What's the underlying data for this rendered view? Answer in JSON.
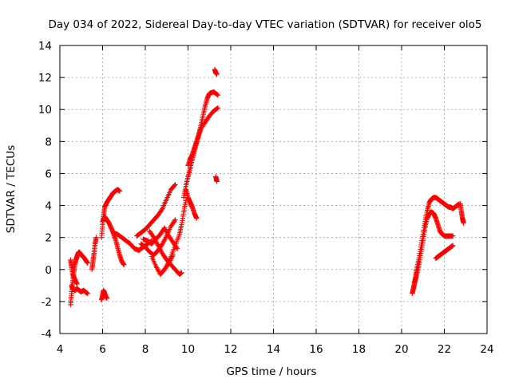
{
  "chart_data": {
    "type": "scatter",
    "title": "Day 034 of 2022, Sidereal Day-to-day VTEC variation (SDTVAR) for receiver olo5",
    "xlabel": "GPS time / hours",
    "ylabel": "SDTVAR / TECUs",
    "xlim": [
      4,
      24
    ],
    "ylim": [
      -4,
      14
    ],
    "xticks": [
      4,
      6,
      8,
      10,
      12,
      14,
      16,
      18,
      20,
      22,
      24
    ],
    "yticks": [
      -4,
      -2,
      0,
      2,
      4,
      6,
      8,
      10,
      12,
      14
    ],
    "grid": true,
    "marker": "+",
    "color": "#ff0000",
    "series": [
      {
        "name": "seg-a",
        "x": [
          4.5,
          4.55,
          4.6,
          4.65,
          4.7,
          4.75,
          4.8,
          4.85,
          4.9,
          4.95,
          5.0,
          5.1,
          5.2,
          5.3
        ],
        "y": [
          -2.2,
          -1.5,
          -0.8,
          -0.2,
          0.3,
          0.6,
          0.8,
          1.0,
          1.1,
          1.0,
          0.9,
          0.8,
          0.6,
          0.4
        ]
      },
      {
        "name": "seg-b",
        "x": [
          4.55,
          4.6,
          4.7,
          4.8,
          4.9,
          5.0,
          5.1,
          5.2,
          5.3
        ],
        "y": [
          -1.0,
          -1.2,
          -1.3,
          -1.2,
          -1.3,
          -1.4,
          -1.3,
          -1.4,
          -1.5
        ]
      },
      {
        "name": "seg-c",
        "x": [
          4.5,
          4.55,
          4.6,
          4.7,
          4.8
        ],
        "y": [
          0.6,
          0.2,
          -0.3,
          -0.6,
          -0.9
        ]
      },
      {
        "name": "seg-d",
        "x": [
          5.5,
          5.55,
          5.6,
          5.65,
          5.7
        ],
        "y": [
          0.0,
          0.5,
          1.0,
          1.6,
          2.0
        ]
      },
      {
        "name": "seg-e",
        "x": [
          5.95,
          6.0,
          6.05,
          6.1,
          6.15,
          6.2
        ],
        "y": [
          -1.9,
          -1.6,
          -1.3,
          -1.5,
          -1.7,
          -1.8
        ]
      },
      {
        "name": "seg-f",
        "x": [
          5.95,
          6.0,
          6.05,
          6.1,
          6.2,
          6.3,
          6.4,
          6.5,
          6.6,
          6.7,
          6.8
        ],
        "y": [
          2.0,
          2.8,
          3.4,
          3.9,
          4.2,
          4.4,
          4.6,
          4.8,
          4.9,
          5.0,
          4.9
        ]
      },
      {
        "name": "seg-g",
        "x": [
          6.0,
          6.1,
          6.2,
          6.3,
          6.4,
          6.5,
          6.6,
          6.7,
          6.8,
          6.9,
          7.0
        ],
        "y": [
          3.0,
          3.3,
          3.1,
          2.9,
          2.6,
          2.3,
          1.9,
          1.4,
          0.9,
          0.5,
          0.3
        ]
      },
      {
        "name": "seg-h",
        "x": [
          6.5,
          6.7,
          6.9,
          7.1,
          7.3,
          7.5,
          7.7,
          7.9,
          8.1,
          8.3
        ],
        "y": [
          2.3,
          2.2,
          2.0,
          1.8,
          1.6,
          1.3,
          1.2,
          1.4,
          1.6,
          1.8
        ]
      },
      {
        "name": "seg-i",
        "x": [
          7.6,
          7.8,
          8.0,
          8.2,
          8.4,
          8.6,
          8.8,
          9.0,
          9.2,
          9.4
        ],
        "y": [
          2.1,
          2.3,
          2.5,
          2.8,
          3.1,
          3.4,
          3.8,
          4.4,
          5.0,
          5.3
        ]
      },
      {
        "name": "seg-j",
        "x": [
          7.8,
          8.0,
          8.2,
          8.4,
          8.6,
          8.8,
          9.0,
          9.2,
          9.4
        ],
        "y": [
          1.6,
          1.4,
          1.1,
          0.9,
          1.2,
          1.6,
          2.1,
          2.7,
          3.1
        ]
      },
      {
        "name": "seg-k",
        "x": [
          7.9,
          8.1,
          8.3,
          8.5,
          8.7,
          8.9,
          9.1,
          9.3,
          9.5
        ],
        "y": [
          1.9,
          1.8,
          1.6,
          1.9,
          2.2,
          2.6,
          2.1,
          1.7,
          1.3
        ]
      },
      {
        "name": "seg-l",
        "x": [
          8.2,
          8.4,
          8.6,
          8.8,
          9.0,
          9.2,
          9.4,
          9.6,
          9.7
        ],
        "y": [
          2.4,
          2.0,
          1.5,
          1.0,
          0.6,
          0.3,
          0.0,
          -0.3,
          -0.2
        ]
      },
      {
        "name": "seg-m",
        "x": [
          8.3,
          8.5,
          8.7,
          8.9,
          9.1,
          9.3
        ],
        "y": [
          0.8,
          0.2,
          -0.3,
          0.0,
          0.4,
          0.9
        ]
      },
      {
        "name": "seg-n",
        "x": [
          9.0,
          9.2,
          9.4,
          9.6,
          9.7,
          9.8,
          9.9
        ],
        "y": [
          0.2,
          0.8,
          1.5,
          2.2,
          2.8,
          3.6,
          4.3
        ]
      },
      {
        "name": "seg-o",
        "x": [
          9.8,
          9.9,
          10.0,
          10.1,
          10.2,
          10.3,
          10.4,
          10.5,
          10.6,
          10.7,
          10.8,
          10.9,
          11.0,
          11.2,
          11.4
        ],
        "y": [
          4.5,
          5.2,
          5.8,
          6.3,
          6.9,
          7.4,
          7.9,
          8.4,
          9.0,
          9.6,
          10.2,
          10.7,
          11.0,
          11.1,
          10.9
        ]
      },
      {
        "name": "seg-p",
        "x": [
          10.0,
          10.1,
          10.2,
          10.3,
          10.4,
          10.5,
          10.6,
          10.8,
          11.0,
          11.2,
          11.4
        ],
        "y": [
          6.5,
          6.9,
          7.2,
          7.6,
          8.0,
          8.4,
          8.8,
          9.2,
          9.6,
          9.9,
          10.1
        ]
      },
      {
        "name": "seg-q",
        "x": [
          9.9,
          10.0,
          10.1,
          10.2,
          10.3,
          10.4
        ],
        "y": [
          5.0,
          4.5,
          4.2,
          3.9,
          3.5,
          3.2
        ]
      },
      {
        "name": "seg-r",
        "x": [
          11.25,
          11.3,
          11.35
        ],
        "y": [
          12.5,
          12.3,
          12.2
        ]
      },
      {
        "name": "seg-s",
        "x": [
          11.3,
          11.35
        ],
        "y": [
          5.8,
          5.5
        ]
      },
      {
        "name": "seg-t",
        "x": [
          20.5,
          20.55,
          20.6,
          20.65,
          20.7,
          20.8,
          20.9,
          21.0,
          21.1,
          21.2,
          21.3,
          21.4,
          21.5,
          21.6,
          21.7,
          21.8,
          21.9,
          22.0,
          22.1,
          22.2,
          22.3,
          22.4,
          22.5,
          22.6,
          22.7
        ],
        "y": [
          -1.5,
          -1.2,
          -0.9,
          -0.5,
          0.0,
          0.6,
          1.4,
          2.2,
          3.0,
          3.7,
          4.2,
          4.4,
          4.5,
          4.5,
          4.4,
          4.3,
          4.2,
          4.1,
          4.0,
          3.9,
          3.9,
          3.8,
          3.9,
          4.0,
          4.1
        ]
      },
      {
        "name": "seg-u",
        "x": [
          20.6,
          20.7,
          20.8,
          20.9,
          21.0,
          21.1,
          21.2,
          21.3,
          21.4,
          21.5,
          21.6,
          21.7,
          21.8,
          21.9,
          22.0,
          22.1,
          22.2,
          22.3,
          22.4
        ],
        "y": [
          -0.8,
          -0.4,
          0.2,
          1.0,
          1.8,
          2.6,
          3.2,
          3.5,
          3.6,
          3.5,
          3.2,
          2.8,
          2.4,
          2.2,
          2.1,
          2.1,
          2.1,
          2.1,
          2.1
        ]
      },
      {
        "name": "seg-v",
        "x": [
          21.6,
          21.7,
          21.8,
          21.9,
          22.0,
          22.1,
          22.2,
          22.3,
          22.4
        ],
        "y": [
          0.7,
          0.8,
          0.9,
          1.0,
          1.1,
          1.2,
          1.3,
          1.4,
          1.5
        ]
      },
      {
        "name": "seg-w",
        "x": [
          22.75,
          22.8,
          22.85,
          22.9
        ],
        "y": [
          4.1,
          3.6,
          3.2,
          2.9
        ]
      }
    ]
  }
}
